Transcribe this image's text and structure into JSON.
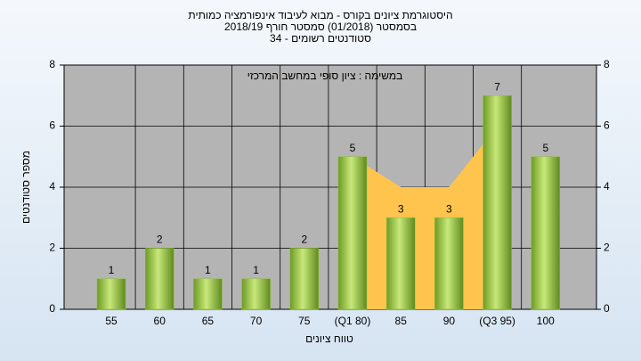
{
  "chart_data": {
    "type": "bar",
    "title": [
      "היסטוגרמת ציונים בקורס - מבוא לעיבוד אינפורמציה כמותית",
      "בסמסטר  (01/2018)  סמסטר חורף 2018/19",
      "סטודנטים רשומים - 34"
    ],
    "annotation": "במשימה : ציון סופי במחשב המרכזי",
    "x_label": "טווח ציונים",
    "y_label": "מספר סטודנטים",
    "categories": [
      "55",
      "60",
      "65",
      "70",
      "75",
      "(Q1 80)",
      "85",
      "90",
      "(Q3 95)",
      "100"
    ],
    "series": [
      {
        "values": [
          1,
          2,
          1,
          1,
          2,
          5,
          3,
          3,
          7,
          5
        ],
        "color": "#8fc03a"
      }
    ],
    "area": {
      "values": [
        null,
        null,
        null,
        null,
        null,
        5,
        4,
        4,
        6,
        null
      ],
      "color": "#ffc44d"
    },
    "ylim": [
      0,
      8
    ],
    "yticks": [
      0,
      2,
      4,
      6,
      8
    ],
    "y2lim": [
      0,
      8
    ],
    "y2ticks": [
      0,
      2,
      4,
      6,
      8
    ],
    "grid": true
  }
}
